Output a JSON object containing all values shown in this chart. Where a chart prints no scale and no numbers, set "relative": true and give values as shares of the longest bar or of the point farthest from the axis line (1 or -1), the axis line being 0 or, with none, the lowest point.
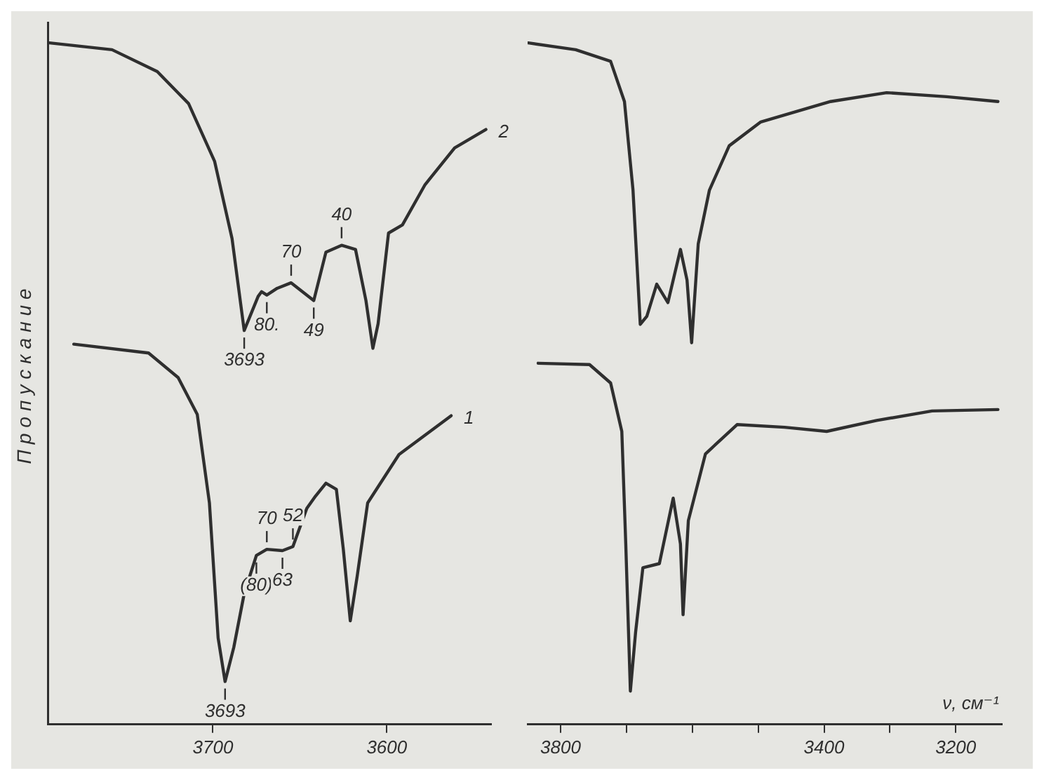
{
  "chart_data": [
    {
      "type": "line",
      "ylabel": "Пропускание",
      "relative": true,
      "grid": false,
      "legend": false,
      "xlim": [
        3795,
        3540
      ],
      "xticks": [
        3700,
        3600
      ],
      "series": [
        {
          "name": "2",
          "color": "#2f2f2f",
          "x": [
            3794,
            3758,
            3732,
            3714,
            3699,
            3689,
            3682,
            3674,
            3672,
            3669,
            3663,
            3655,
            3642,
            3635,
            3626,
            3618,
            3612,
            3608,
            3605,
            3599,
            3591,
            3578,
            3561,
            3543
          ],
          "values": [
            1.0,
            0.99,
            0.958,
            0.911,
            0.826,
            0.713,
            0.578,
            0.628,
            0.635,
            0.63,
            0.64,
            0.648,
            0.622,
            0.693,
            0.703,
            0.697,
            0.622,
            0.552,
            0.588,
            0.721,
            0.733,
            0.792,
            0.846,
            0.873
          ]
        },
        {
          "name": "1",
          "color": "#2f2f2f",
          "x": [
            3780,
            3737,
            3720,
            3709,
            3702,
            3697,
            3693,
            3688,
            3682,
            3675,
            3669,
            3660,
            3654,
            3646,
            3641,
            3635,
            3629,
            3625,
            3621,
            3617,
            3611,
            3593,
            3563
          ],
          "values": [
            0.558,
            0.545,
            0.509,
            0.455,
            0.325,
            0.127,
            0.063,
            0.113,
            0.192,
            0.248,
            0.257,
            0.255,
            0.261,
            0.317,
            0.335,
            0.354,
            0.345,
            0.257,
            0.152,
            0.218,
            0.325,
            0.396,
            0.453
          ]
        }
      ],
      "annotations": [
        {
          "text": "3693",
          "x": 3682,
          "y": 0.578
        },
        {
          "text": "80.",
          "x": 3669,
          "y": 0.63
        },
        {
          "text": "70",
          "x": 3655,
          "y": 0.648
        },
        {
          "text": "49",
          "x": 3642,
          "y": 0.622
        },
        {
          "text": "40",
          "x": 3626,
          "y": 0.703
        },
        {
          "text": "(80)",
          "x": 3675,
          "y": 0.248
        },
        {
          "text": "3693",
          "x": 3693,
          "y": 0.063
        },
        {
          "text": "70",
          "x": 3669,
          "y": 0.257
        },
        {
          "text": "63",
          "x": 3660,
          "y": 0.255
        },
        {
          "text": "52",
          "x": 3654,
          "y": 0.261
        }
      ]
    },
    {
      "type": "line",
      "xlabel": "ν, см⁻¹",
      "relative": true,
      "grid": false,
      "legend": false,
      "xlim": [
        3850,
        3130
      ],
      "xticks": [
        3800,
        {
          "value": 3700,
          "label": null
        },
        {
          "value": 3600,
          "label": null
        },
        {
          "value": 3500,
          "label": null
        },
        3400,
        {
          "value": 3300,
          "label": null
        },
        3200
      ],
      "series": [
        {
          "color": "#2f2f2f",
          "x": [
            3849,
            3777,
            3724,
            3703,
            3690,
            3679,
            3669,
            3654,
            3637,
            3618,
            3608,
            3601,
            3591,
            3574,
            3544,
            3496,
            3390,
            3305,
            3214,
            3136
          ],
          "values": [
            1.0,
            0.99,
            0.973,
            0.914,
            0.784,
            0.587,
            0.599,
            0.646,
            0.619,
            0.697,
            0.652,
            0.56,
            0.705,
            0.784,
            0.849,
            0.884,
            0.914,
            0.927,
            0.921,
            0.914
          ]
        },
        {
          "color": "#2f2f2f",
          "x": [
            3834,
            3756,
            3724,
            3707,
            3701,
            3694,
            3686,
            3675,
            3650,
            3629,
            3618,
            3614,
            3606,
            3580,
            3532,
            3460,
            3396,
            3320,
            3236,
            3136
          ],
          "values": [
            0.53,
            0.528,
            0.501,
            0.43,
            0.265,
            0.049,
            0.136,
            0.23,
            0.236,
            0.332,
            0.265,
            0.161,
            0.299,
            0.397,
            0.44,
            0.436,
            0.43,
            0.446,
            0.46,
            0.462
          ]
        }
      ]
    }
  ]
}
